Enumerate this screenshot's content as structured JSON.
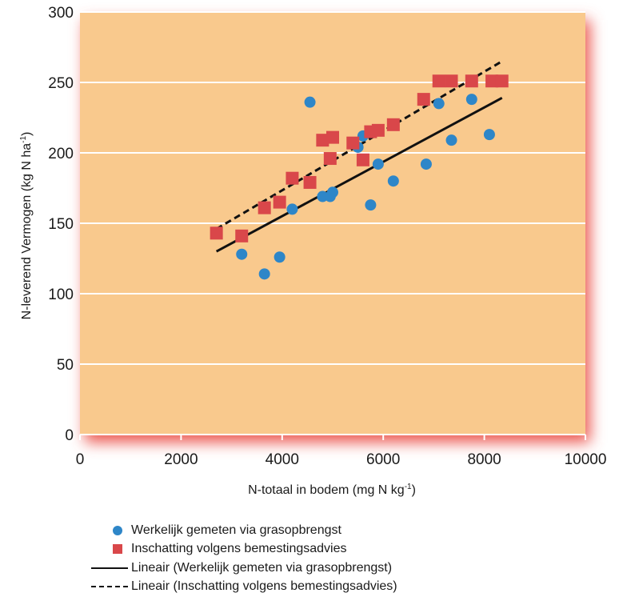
{
  "chart_data": {
    "type": "scatter",
    "title": "",
    "xlabel": "N-totaal in bodem (mg N kg",
    "xlabel_sup": "-1",
    "xlabel_suffix": ")",
    "ylabel": "N-leverend Vermogen (kg N ha",
    "ylabel_sup": "-1",
    "ylabel_suffix": ")",
    "xlim": [
      0,
      10000
    ],
    "ylim": [
      0,
      300
    ],
    "xticks": [
      0,
      2000,
      4000,
      6000,
      8000,
      10000
    ],
    "yticks": [
      0,
      50,
      100,
      150,
      200,
      250,
      300
    ],
    "grid": "horizontal",
    "legend_position": "bottom",
    "series": [
      {
        "name": "Werkelijk gemeten via grasopbrengst",
        "marker": "circle",
        "color": "#2e86c8",
        "points": [
          [
            3200,
            128
          ],
          [
            3650,
            114
          ],
          [
            3950,
            126
          ],
          [
            4200,
            160
          ],
          [
            4550,
            236
          ],
          [
            4800,
            169
          ],
          [
            4950,
            169
          ],
          [
            5000,
            172
          ],
          [
            5500,
            204
          ],
          [
            5600,
            212
          ],
          [
            5750,
            163
          ],
          [
            5900,
            192
          ],
          [
            6200,
            180
          ],
          [
            6850,
            192
          ],
          [
            7100,
            235
          ],
          [
            7350,
            209
          ],
          [
            7750,
            238
          ],
          [
            8100,
            213
          ]
        ]
      },
      {
        "name": "Inschatting volgens bemestingsadvies",
        "marker": "square",
        "color": "#d9474a",
        "points": [
          [
            2700,
            143
          ],
          [
            3200,
            141
          ],
          [
            3650,
            161
          ],
          [
            3950,
            165
          ],
          [
            4200,
            182
          ],
          [
            4550,
            179
          ],
          [
            4800,
            209
          ],
          [
            4950,
            196
          ],
          [
            5000,
            211
          ],
          [
            5400,
            207
          ],
          [
            5600,
            195
          ],
          [
            5750,
            215
          ],
          [
            5900,
            216
          ],
          [
            6200,
            220
          ],
          [
            6800,
            238
          ],
          [
            7100,
            251
          ],
          [
            7350,
            251
          ],
          [
            7750,
            251
          ],
          [
            8150,
            251
          ],
          [
            8350,
            251
          ]
        ]
      },
      {
        "name": "Lineair (Werkelijk gemeten via grasopbrengst)",
        "type": "trendline",
        "style": "solid",
        "color": "#111111",
        "x": [
          2700,
          8350
        ],
        "y": [
          130,
          239
        ]
      },
      {
        "name": "Lineair (Inschatting volgens bemestingsadvies)",
        "type": "trendline",
        "style": "dashed",
        "color": "#111111",
        "x": [
          2700,
          8350
        ],
        "y": [
          146,
          265
        ]
      }
    ],
    "colors": {
      "plot_background": "#f9c98d",
      "glow": "#ec5a52",
      "gridline": "#ffffff"
    }
  },
  "legend": [
    {
      "key": "circle",
      "label": "Werkelijk gemeten via grasopbrengst"
    },
    {
      "key": "square",
      "label": "Inschatting volgens bemestingsadvies"
    },
    {
      "key": "solid",
      "label": "Lineair (Werkelijk gemeten via grasopbrengst)"
    },
    {
      "key": "dashed",
      "label": "Lineair (Inschatting volgens bemestingsadvies)"
    }
  ]
}
